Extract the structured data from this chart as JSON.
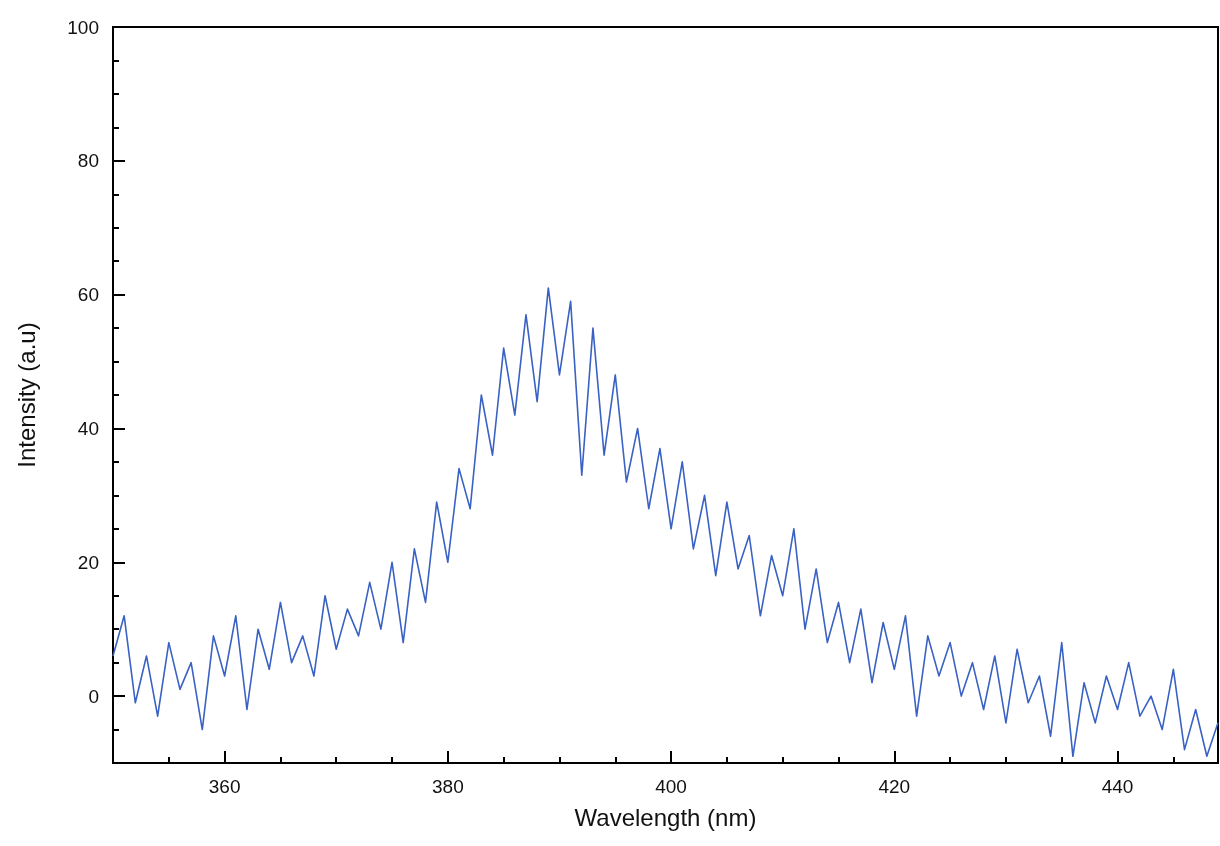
{
  "chart_data": {
    "type": "line",
    "xlabel": "Wavelength (nm)",
    "ylabel": "Intensity (a.u)",
    "x": [
      350,
      351,
      352,
      353,
      354,
      355,
      356,
      357,
      358,
      359,
      360,
      361,
      362,
      363,
      364,
      365,
      366,
      367,
      368,
      369,
      370,
      371,
      372,
      373,
      374,
      375,
      376,
      377,
      378,
      379,
      380,
      381,
      382,
      383,
      384,
      385,
      386,
      387,
      388,
      389,
      390,
      391,
      392,
      393,
      394,
      395,
      396,
      397,
      398,
      399,
      400,
      401,
      402,
      403,
      404,
      405,
      406,
      407,
      408,
      409,
      410,
      411,
      412,
      413,
      414,
      415,
      416,
      417,
      418,
      419,
      420,
      421,
      422,
      423,
      424,
      425,
      426,
      427,
      428,
      429,
      430,
      431,
      432,
      433,
      434,
      435,
      436,
      437,
      438,
      439,
      440,
      441,
      442,
      443,
      444,
      445,
      446,
      447,
      448,
      449
    ],
    "series": [
      {
        "color": "#3a62c4",
        "values": [
          6,
          12,
          -1,
          6,
          -3,
          8,
          1,
          5,
          -5,
          9,
          3,
          12,
          -2,
          10,
          4,
          14,
          5,
          9,
          3,
          15,
          7,
          13,
          9,
          17,
          10,
          20,
          8,
          22,
          14,
          29,
          20,
          34,
          28,
          45,
          36,
          52,
          42,
          57,
          44,
          61,
          48,
          59,
          33,
          55,
          36,
          48,
          32,
          40,
          28,
          37,
          25,
          35,
          22,
          30,
          18,
          29,
          19,
          24,
          12,
          21,
          15,
          25,
          10,
          19,
          8,
          14,
          5,
          13,
          2,
          11,
          4,
          12,
          -3,
          9,
          3,
          8,
          0,
          5,
          -2,
          6,
          -4,
          7,
          -1,
          3,
          -6,
          8,
          -9,
          2,
          -4,
          3,
          -2,
          5,
          -3,
          0,
          -5,
          4,
          -8,
          -2,
          -9,
          -4
        ]
      }
    ],
    "xlim": [
      350,
      449
    ],
    "ylim": [
      -10,
      100
    ],
    "xticks": [
      {
        "value": 355,
        "label": null
      },
      360,
      {
        "value": 365,
        "label": null
      },
      {
        "value": 370,
        "label": null
      },
      {
        "value": 375,
        "label": null
      },
      380,
      {
        "value": 385,
        "label": null
      },
      {
        "value": 390,
        "label": null
      },
      {
        "value": 395,
        "label": null
      },
      400,
      {
        "value": 405,
        "label": null
      },
      {
        "value": 410,
        "label": null
      },
      {
        "value": 415,
        "label": null
      },
      420,
      {
        "value": 425,
        "label": null
      },
      {
        "value": 430,
        "label": null
      },
      {
        "value": 435,
        "label": null
      },
      440,
      {
        "value": 445,
        "label": null
      }
    ],
    "yticks": [
      {
        "value": -5,
        "label": null
      },
      0,
      {
        "value": 5,
        "label": null
      },
      {
        "value": 10,
        "label": null
      },
      {
        "value": 15,
        "label": null
      },
      20,
      {
        "value": 25,
        "label": null
      },
      {
        "value": 30,
        "label": null
      },
      {
        "value": 35,
        "label": null
      },
      40,
      {
        "value": 45,
        "label": null
      },
      {
        "value": 50,
        "label": null
      },
      {
        "value": 55,
        "label": null
      },
      60,
      {
        "value": 65,
        "label": null
      },
      {
        "value": 70,
        "label": null
      },
      {
        "value": 75,
        "label": null
      },
      80,
      {
        "value": 85,
        "label": null
      },
      {
        "value": 90,
        "label": null
      },
      {
        "value": 95,
        "label": null
      },
      100
    ],
    "grid": false,
    "marker": "none",
    "line_style": "solid"
  }
}
